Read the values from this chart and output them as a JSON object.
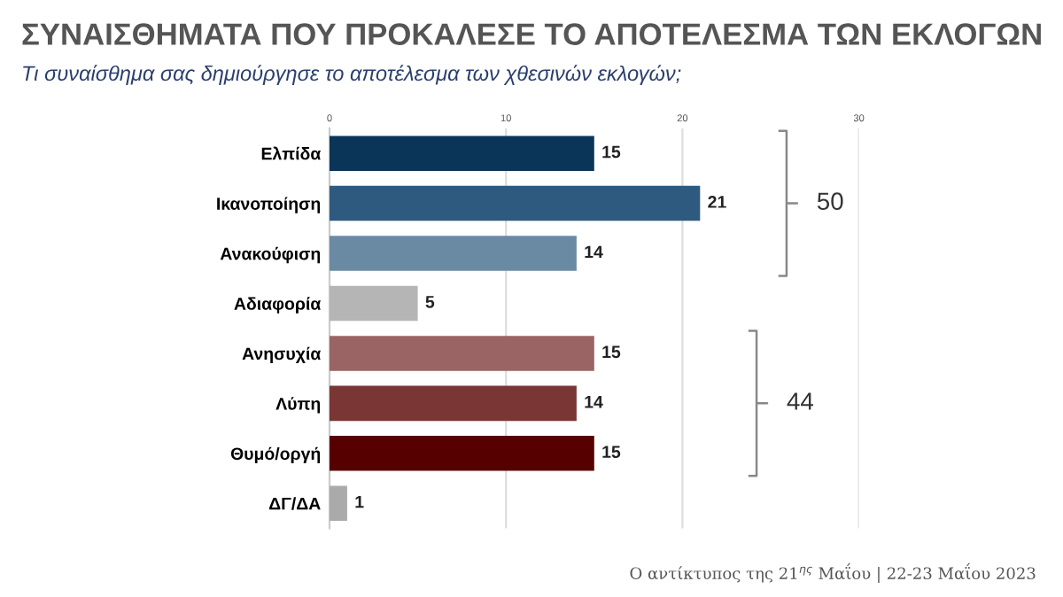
{
  "chart_data": {
    "type": "bar",
    "orientation": "horizontal",
    "title": "ΣΥΝΑΙΣΘΗΜΑΤΑ ΠΟΥ ΠΡΟΚΑΛΕΣΕ ΤΟ ΑΠΟΤΕΛΕΣΜΑ ΤΩΝ ΕΚΛΟΓΩΝ",
    "subtitle": "Τι συναίσθημα σας δημιούργησε το αποτέλεσμα των χθεσινών εκλογών;",
    "categories": [
      "Ελπίδα",
      "Ικανοποίηση",
      "Ανακούφιση",
      "Αδιαφορία",
      "Ανησυχία",
      "Λύπη",
      "Θυμό/οργή",
      "ΔΓ/ΔΑ"
    ],
    "values": [
      15,
      21,
      14,
      5,
      15,
      14,
      15,
      1
    ],
    "colors": [
      "#0b3558",
      "#2f5a80",
      "#6a8aa3",
      "#b5b5b5",
      "#9a6464",
      "#7a3535",
      "#560000",
      "#aaaaaa"
    ],
    "xlim": [
      0,
      30
    ],
    "xticks": [
      0,
      10,
      20,
      30
    ],
    "grid": "x",
    "data_labels": true,
    "annotations": [
      "50",
      "44",
      "Ο αντίκτυπος της 21$^{ης}$ Μαΐου | 22-23 Μαΐου 2023"
    ]
  }
}
